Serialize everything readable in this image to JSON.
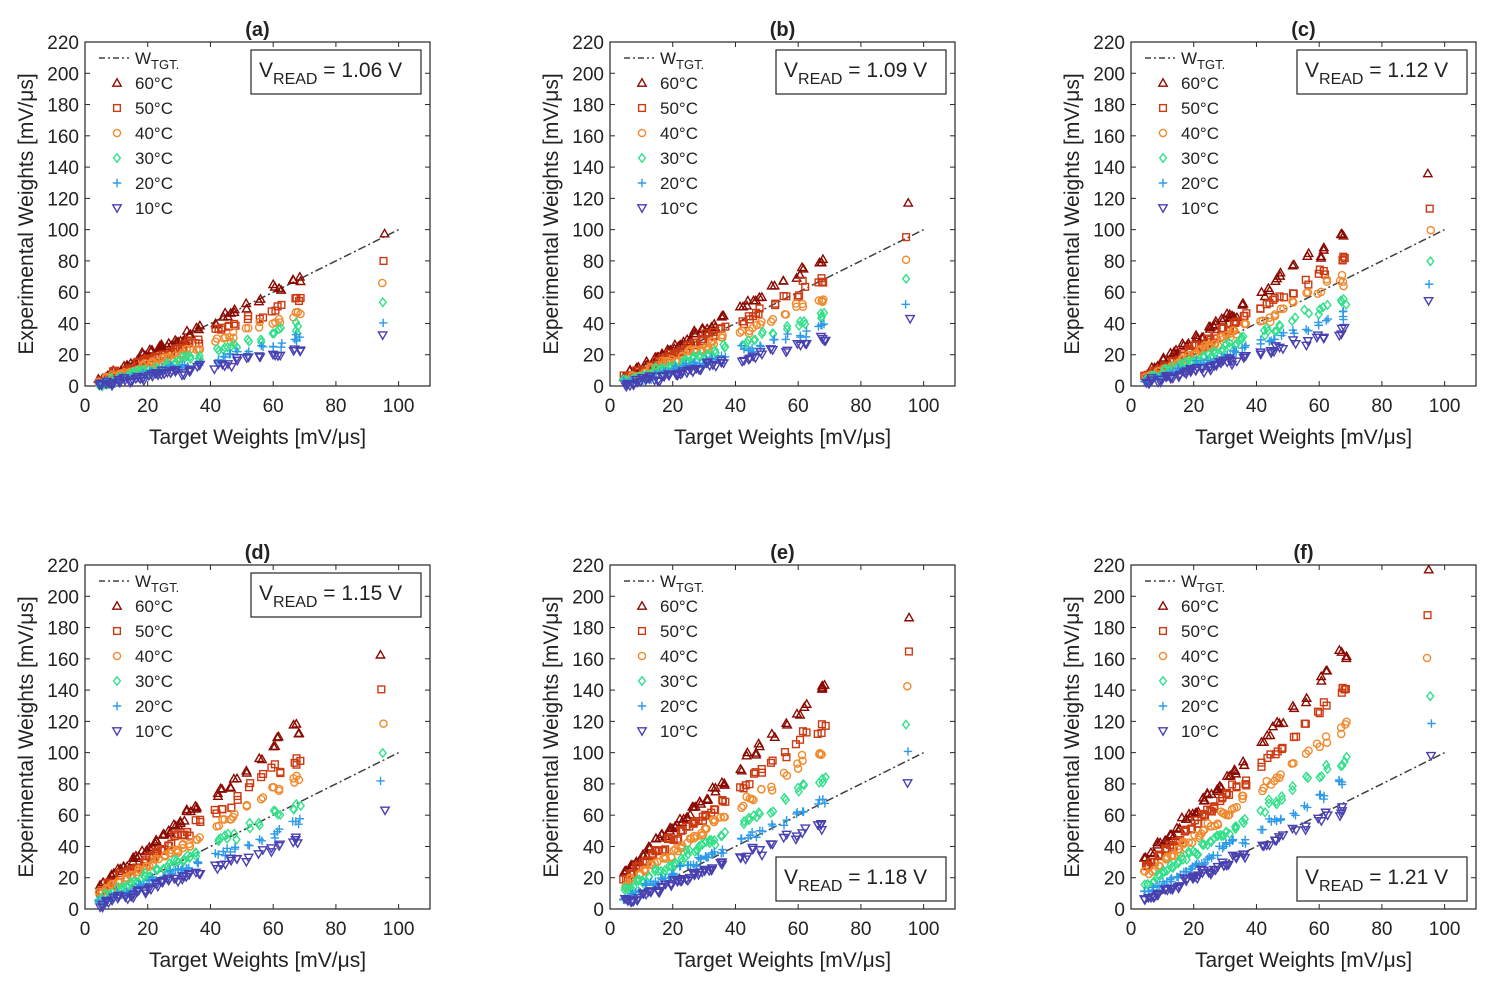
{
  "figure": {
    "x_axis_label": "Target Weights [mV/μs]",
    "y_axis_label": "Experimental Weights [mV/μs]",
    "legend": [
      {
        "key": "tgt",
        "label": "W",
        "sub": "TGT.",
        "marker": "dashdot",
        "color": "#404040"
      },
      {
        "key": "60",
        "label": "60°C",
        "marker": "triangle-up",
        "color": "#8b0a00"
      },
      {
        "key": "50",
        "label": "50°C",
        "marker": "square",
        "color": "#cc3a12"
      },
      {
        "key": "40",
        "label": "40°C",
        "marker": "circle",
        "color": "#f08a2e"
      },
      {
        "key": "30",
        "label": "30°C",
        "marker": "diamond",
        "color": "#32e08a"
      },
      {
        "key": "20",
        "label": "20°C",
        "marker": "plus",
        "color": "#2c9ae8"
      },
      {
        "key": "10",
        "label": "10°C",
        "marker": "triangle-down",
        "color": "#4840b0"
      }
    ]
  },
  "chart_data": [
    {
      "type": "scatter",
      "title": "(a)",
      "vread_label": "V",
      "vread_sub": "READ",
      "vread_value": " = 1.06 V",
      "vread_position": "top-right",
      "xlabel": "Target Weights [mV/μs]",
      "ylabel": "Experimental Weights [mV/μs]",
      "xlim": [
        0,
        110
      ],
      "ylim": [
        0,
        220
      ],
      "xticks": [
        0,
        20,
        40,
        60,
        80,
        100
      ],
      "yticks": [
        0,
        20,
        40,
        60,
        80,
        100,
        120,
        140,
        160,
        180,
        200,
        220
      ],
      "reference_line": {
        "name": "W TGT.",
        "x": [
          5,
          100
        ],
        "y": [
          5,
          100
        ]
      },
      "target_x": [
        5,
        7,
        9,
        11,
        13,
        15,
        17,
        19,
        21,
        23,
        25,
        27,
        29,
        31,
        33,
        36,
        42,
        44,
        46,
        48,
        52,
        56,
        60,
        62,
        67,
        68,
        95
      ],
      "series": [
        {
          "name": "60°C",
          "offset": 5,
          "y_at_95": 99,
          "slope": 1.0
        },
        {
          "name": "50°C",
          "offset": 4,
          "y_at_95": 81,
          "slope": 0.82
        },
        {
          "name": "40°C",
          "offset": 3,
          "y_at_95": 67,
          "slope": 0.68
        },
        {
          "name": "30°C",
          "offset": 2,
          "y_at_95": 54,
          "slope": 0.55
        },
        {
          "name": "20°C",
          "offset": 1.5,
          "y_at_95": 42,
          "slope": 0.43
        },
        {
          "name": "10°C",
          "offset": 1,
          "y_at_95": 33,
          "slope": 0.34
        }
      ]
    },
    {
      "type": "scatter",
      "title": "(b)",
      "vread_label": "V",
      "vread_sub": "READ",
      "vread_value": " = 1.09 V",
      "vread_position": "top-right",
      "xlabel": "Target Weights [mV/μs]",
      "ylabel": "Experimental Weights [mV/μs]",
      "xlim": [
        0,
        110
      ],
      "ylim": [
        0,
        220
      ],
      "xticks": [
        0,
        20,
        40,
        60,
        80,
        100
      ],
      "yticks": [
        0,
        20,
        40,
        60,
        80,
        100,
        120,
        140,
        160,
        180,
        200,
        220
      ],
      "reference_line": {
        "name": "W TGT.",
        "x": [
          5,
          100
        ],
        "y": [
          5,
          100
        ]
      },
      "target_x": [
        5,
        7,
        9,
        11,
        13,
        15,
        17,
        19,
        21,
        23,
        25,
        27,
        29,
        31,
        33,
        36,
        42,
        44,
        46,
        48,
        52,
        56,
        60,
        62,
        67,
        68,
        95
      ],
      "series": [
        {
          "name": "60°C",
          "offset": 6,
          "y_at_95": 116,
          "slope": 1.2
        },
        {
          "name": "50°C",
          "offset": 5,
          "y_at_95": 97,
          "slope": 1.0
        },
        {
          "name": "40°C",
          "offset": 4,
          "y_at_95": 81,
          "slope": 0.83
        },
        {
          "name": "30°C",
          "offset": 3,
          "y_at_95": 66,
          "slope": 0.67
        },
        {
          "name": "20°C",
          "offset": 2,
          "y_at_95": 53,
          "slope": 0.54
        },
        {
          "name": "10°C",
          "offset": 1,
          "y_at_95": 42,
          "slope": 0.43
        }
      ]
    },
    {
      "type": "scatter",
      "title": "(c)",
      "vread_label": "V",
      "vread_sub": "READ",
      "vread_value": " = 1.12 V",
      "vread_position": "top-right",
      "xlabel": "Target Weights [mV/μs]",
      "ylabel": "Experimental Weights [mV/μs]",
      "xlim": [
        0,
        110
      ],
      "ylim": [
        0,
        220
      ],
      "xticks": [
        0,
        20,
        40,
        60,
        80,
        100
      ],
      "yticks": [
        0,
        20,
        40,
        60,
        80,
        100,
        120,
        140,
        160,
        180,
        200,
        220
      ],
      "reference_line": {
        "name": "W TGT.",
        "x": [
          5,
          100
        ],
        "y": [
          5,
          100
        ]
      },
      "target_x": [
        5,
        7,
        9,
        11,
        13,
        15,
        17,
        19,
        21,
        23,
        25,
        27,
        29,
        31,
        33,
        36,
        42,
        44,
        46,
        48,
        52,
        56,
        60,
        62,
        67,
        68,
        95
      ],
      "series": [
        {
          "name": "60°C",
          "offset": 8,
          "y_at_95": 138,
          "slope": 1.42
        },
        {
          "name": "50°C",
          "offset": 6,
          "y_at_95": 116,
          "slope": 1.2
        },
        {
          "name": "40°C",
          "offset": 5,
          "y_at_95": 99,
          "slope": 1.02
        },
        {
          "name": "30°C",
          "offset": 4,
          "y_at_95": 80,
          "slope": 0.82
        },
        {
          "name": "20°C",
          "offset": 3,
          "y_at_95": 65,
          "slope": 0.66
        },
        {
          "name": "10°C",
          "offset": 2,
          "y_at_95": 52,
          "slope": 0.53
        }
      ]
    },
    {
      "type": "scatter",
      "title": "(d)",
      "vread_label": "V",
      "vread_sub": "READ",
      "vread_value": " = 1.15 V",
      "vread_position": "top-right",
      "xlabel": "Target Weights [mV/μs]",
      "ylabel": "Experimental Weights [mV/μs]",
      "xlim": [
        0,
        110
      ],
      "ylim": [
        0,
        220
      ],
      "xticks": [
        0,
        20,
        40,
        60,
        80,
        100
      ],
      "yticks": [
        0,
        20,
        40,
        60,
        80,
        100,
        120,
        140,
        160,
        180,
        200,
        220
      ],
      "reference_line": {
        "name": "W TGT.",
        "x": [
          5,
          100
        ],
        "y": [
          5,
          100
        ]
      },
      "target_x": [
        5,
        7,
        9,
        11,
        13,
        15,
        17,
        19,
        21,
        23,
        25,
        27,
        29,
        31,
        33,
        36,
        42,
        44,
        46,
        48,
        52,
        56,
        60,
        62,
        67,
        68,
        95
      ],
      "series": [
        {
          "name": "60°C",
          "offset": 15,
          "y_at_95": 162,
          "slope": 1.6
        },
        {
          "name": "50°C",
          "offset": 12,
          "y_at_95": 138,
          "slope": 1.36
        },
        {
          "name": "40°C",
          "offset": 10,
          "y_at_95": 117,
          "slope": 1.15
        },
        {
          "name": "30°C",
          "offset": 7,
          "y_at_95": 97,
          "slope": 0.95
        },
        {
          "name": "20°C",
          "offset": 5,
          "y_at_95": 81,
          "slope": 0.8
        },
        {
          "name": "10°C",
          "offset": 3,
          "y_at_95": 65,
          "slope": 0.65
        }
      ]
    },
    {
      "type": "scatter",
      "title": "(e)",
      "vread_label": "V",
      "vread_sub": "READ",
      "vread_value": " = 1.18 V",
      "vread_position": "bottom-right",
      "xlabel": "Target Weights [mV/μs]",
      "ylabel": "Experimental Weights [mV/μs]",
      "xlim": [
        0,
        110
      ],
      "ylim": [
        0,
        220
      ],
      "xticks": [
        0,
        20,
        40,
        60,
        80,
        100
      ],
      "yticks": [
        0,
        20,
        40,
        60,
        80,
        100,
        120,
        140,
        160,
        180,
        200,
        220
      ],
      "reference_line": {
        "name": "W TGT.",
        "x": [
          5,
          100
        ],
        "y": [
          5,
          100
        ]
      },
      "target_x": [
        5,
        7,
        9,
        11,
        13,
        15,
        17,
        19,
        21,
        23,
        25,
        27,
        29,
        31,
        33,
        36,
        42,
        44,
        46,
        48,
        52,
        56,
        60,
        62,
        67,
        68,
        95
      ],
      "series": [
        {
          "name": "60°C",
          "offset": 24,
          "y_at_95": 189,
          "slope": 1.85
        },
        {
          "name": "50°C",
          "offset": 20,
          "y_at_95": 163,
          "slope": 1.58
        },
        {
          "name": "40°C",
          "offset": 16,
          "y_at_95": 140,
          "slope": 1.36
        },
        {
          "name": "30°C",
          "offset": 12,
          "y_at_95": 118,
          "slope": 1.14
        },
        {
          "name": "20°C",
          "offset": 8,
          "y_at_95": 99,
          "slope": 0.96
        },
        {
          "name": "10°C",
          "offset": 4,
          "y_at_95": 81,
          "slope": 0.8
        }
      ]
    },
    {
      "type": "scatter",
      "title": "(f)",
      "vread_label": "V",
      "vread_sub": "READ",
      "vread_value": " = 1.21 V",
      "vread_position": "bottom-right",
      "xlabel": "Target Weights [mV/μs]",
      "ylabel": "Experimental Weights [mV/μs]",
      "xlim": [
        0,
        110
      ],
      "ylim": [
        0,
        220
      ],
      "xticks": [
        0,
        20,
        40,
        60,
        80,
        100
      ],
      "yticks": [
        0,
        20,
        40,
        60,
        80,
        100,
        120,
        140,
        160,
        180,
        200,
        220
      ],
      "reference_line": {
        "name": "W TGT.",
        "x": [
          5,
          100
        ],
        "y": [
          5,
          100
        ]
      },
      "target_x": [
        5,
        7,
        9,
        11,
        13,
        15,
        17,
        19,
        21,
        23,
        25,
        27,
        29,
        31,
        33,
        36,
        42,
        44,
        46,
        48,
        52,
        56,
        60,
        62,
        67,
        68,
        95
      ],
      "series": [
        {
          "name": "60°C",
          "offset": 32,
          "y_at_95": 217,
          "slope": 2.05
        },
        {
          "name": "50°C",
          "offset": 27,
          "y_at_95": 187,
          "slope": 1.76
        },
        {
          "name": "40°C",
          "offset": 22,
          "y_at_95": 163,
          "slope": 1.54
        },
        {
          "name": "30°C",
          "offset": 16,
          "y_at_95": 139,
          "slope": 1.3
        },
        {
          "name": "20°C",
          "offset": 11,
          "y_at_95": 116,
          "slope": 1.1
        },
        {
          "name": "10°C",
          "offset": 5,
          "y_at_95": 97,
          "slope": 0.96
        }
      ]
    }
  ]
}
